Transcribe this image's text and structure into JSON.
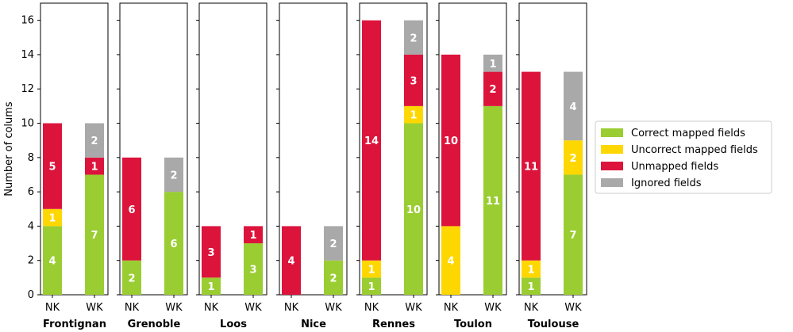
{
  "chart_data": {
    "type": "bar",
    "stacked": true,
    "ylabel": "Number of colums",
    "ylim": [
      0,
      17
    ],
    "yticks": [
      0,
      2,
      4,
      6,
      8,
      10,
      12,
      14,
      16
    ],
    "bar_categories": [
      "NK",
      "WK"
    ],
    "series_names": [
      "Correct mapped fields",
      "Uncorrect mapped fields",
      "Unmapped fields",
      "Ignored fields"
    ],
    "colors": [
      "#9acd32",
      "#ffd700",
      "#dc143c",
      "#a9a9a9"
    ],
    "legend_position": "right",
    "grid": false,
    "panels": [
      {
        "name": "Frontignan",
        "bars": [
          [
            4,
            1,
            5,
            0
          ],
          [
            7,
            0,
            1,
            2
          ]
        ]
      },
      {
        "name": "Grenoble",
        "bars": [
          [
            2,
            0,
            6,
            0
          ],
          [
            6,
            0,
            0,
            2
          ]
        ]
      },
      {
        "name": "Loos",
        "bars": [
          [
            1,
            0,
            3,
            0
          ],
          [
            3,
            0,
            1,
            0
          ]
        ]
      },
      {
        "name": "Nice",
        "bars": [
          [
            0,
            0,
            4,
            0
          ],
          [
            2,
            0,
            0,
            2
          ]
        ]
      },
      {
        "name": "Rennes",
        "bars": [
          [
            1,
            1,
            14,
            0
          ],
          [
            10,
            1,
            3,
            2
          ]
        ]
      },
      {
        "name": "Toulon",
        "bars": [
          [
            0,
            4,
            10,
            0
          ],
          [
            11,
            0,
            2,
            1
          ]
        ]
      },
      {
        "name": "Toulouse",
        "bars": [
          [
            1,
            1,
            11,
            0
          ],
          [
            7,
            2,
            0,
            4
          ]
        ]
      }
    ]
  }
}
